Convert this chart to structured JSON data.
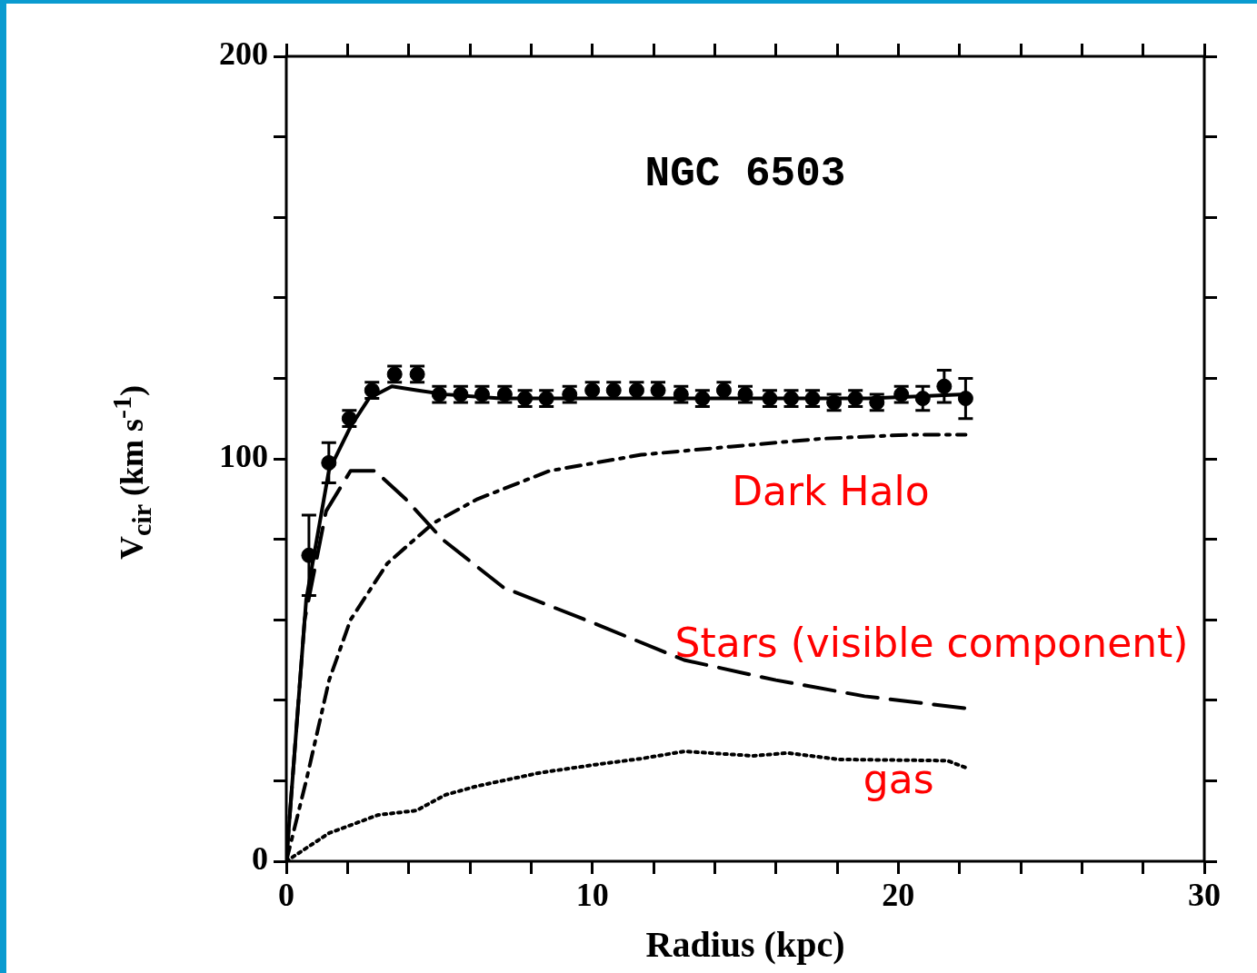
{
  "chart_data": {
    "type": "scatter",
    "title": "NGC 6503",
    "xlabel": "Radius (kpc)",
    "ylabel": "V$_{cir}$ (km s$^{-1}$)",
    "xlim": [
      0,
      30
    ],
    "ylim": [
      0,
      200
    ],
    "xticks": [
      0,
      {
        "value": 2,
        "label": null
      },
      {
        "value": 4,
        "label": null
      },
      {
        "value": 6,
        "label": null
      },
      {
        "value": 8,
        "label": null
      },
      10,
      {
        "value": 12,
        "label": null
      },
      {
        "value": 14,
        "label": null
      },
      {
        "value": 16,
        "label": null
      },
      {
        "value": 18,
        "label": null
      },
      20,
      {
        "value": 22,
        "label": null
      },
      {
        "value": 24,
        "label": null
      },
      {
        "value": 26,
        "label": null
      },
      {
        "value": 28,
        "label": null
      },
      30
    ],
    "yticks": [
      0,
      {
        "value": 20,
        "label": null
      },
      {
        "value": 40,
        "label": null
      },
      {
        "value": 60,
        "label": null
      },
      {
        "value": 80,
        "label": null
      },
      100,
      {
        "value": 120,
        "label": null
      },
      {
        "value": 140,
        "label": null
      },
      {
        "value": 160,
        "label": null
      },
      {
        "value": 180,
        "label": null
      },
      200
    ],
    "legend": false,
    "series": [
      {
        "type": "scatter",
        "marker": "circle",
        "color": "#000000",
        "x": [
          0.74,
          1.39,
          2.06,
          2.8,
          3.54,
          4.28,
          5.0,
          5.7,
          6.4,
          7.14,
          7.8,
          8.5,
          9.26,
          10.0,
          10.7,
          11.45,
          12.15,
          12.9,
          13.6,
          14.3,
          15.0,
          15.8,
          16.5,
          17.2,
          17.9,
          18.6,
          19.3,
          20.1,
          20.8,
          21.5,
          22.2
        ],
        "values": [
          76,
          99,
          110,
          117,
          121,
          121,
          116,
          116,
          116,
          116,
          115,
          115,
          116,
          117,
          117,
          117,
          117,
          116,
          115,
          117,
          116,
          115,
          115,
          115,
          114,
          115,
          114,
          116,
          115,
          118,
          115
        ],
        "errors": [
          10,
          5,
          2,
          2,
          2,
          2,
          2,
          2,
          2,
          2,
          2,
          2,
          2,
          2,
          2,
          2,
          2,
          2,
          2,
          2,
          2,
          2,
          2,
          2,
          2,
          2,
          2,
          2,
          3,
          4,
          5
        ]
      },
      {
        "type": "line",
        "line_style": "solid",
        "color": "#000000",
        "x": [
          0,
          0.65,
          1.39,
          2.1,
          2.7,
          3.45,
          4.3,
          5.2,
          7,
          10,
          13,
          16,
          19,
          22.2
        ],
        "values": [
          0,
          65,
          97,
          108,
          115,
          118,
          117,
          116,
          115,
          115,
          115,
          115,
          115,
          116
        ]
      },
      {
        "type": "line",
        "line_style": "dashdot",
        "color": "#000000",
        "x": [
          0,
          0.65,
          1.4,
          2.1,
          3.3,
          4.8,
          6.25,
          8.6,
          11.6,
          14.5,
          17.5,
          20.4,
          22.2
        ],
        "values": [
          0,
          20,
          45,
          60,
          74,
          84,
          90,
          97,
          101,
          103,
          105,
          106,
          106
        ]
      },
      {
        "type": "line",
        "line_style": "dashed",
        "color": "#000000",
        "x": [
          0,
          0.6,
          1.3,
          2.1,
          2.9,
          3.9,
          5.1,
          7.1,
          10.1,
          13,
          16,
          18.9,
          22.2
        ],
        "values": [
          0,
          60,
          87,
          97,
          97,
          90,
          80,
          68,
          59,
          50,
          45,
          41,
          38
        ]
      },
      {
        "type": "line",
        "line_style": "dotted",
        "color": "#000000",
        "x": [
          0,
          1.4,
          3,
          4.25,
          5.2,
          6.25,
          8.3,
          10.1,
          11.6,
          13,
          15.25,
          16.4,
          18.05,
          21.6,
          22.3
        ],
        "values": [
          0,
          7,
          11.5,
          12.6,
          16.5,
          18.7,
          22,
          24,
          25.5,
          27.3,
          26.2,
          26.9,
          25.3,
          25,
          23
        ]
      }
    ],
    "annotations": [
      "Dark Halo",
      "Stars (visible component)",
      "gas"
    ]
  }
}
